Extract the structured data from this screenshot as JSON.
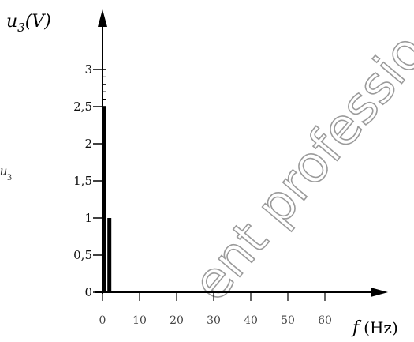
{
  "chart_data": {
    "type": "bar",
    "title": "",
    "ylabel": "u3(V)",
    "ylabel_main": "u",
    "ylabel_sub": "3",
    "ylabel_unit": "(V)",
    "xlabel": "f (Hz)",
    "xlabel_var": "f",
    "xlabel_unit": "(Hz)",
    "x": [
      0,
      1
    ],
    "values": [
      2.5,
      1
    ],
    "xlim": [
      0,
      60
    ],
    "ylim": [
      0,
      3
    ],
    "x_ticks": [
      "0",
      "10",
      "20",
      "30",
      "40",
      "50",
      "60"
    ],
    "y_ticks": [
      "0",
      "0,5",
      "1",
      "1,5",
      "2",
      "2,5",
      "3"
    ],
    "grid": false,
    "legend": "none"
  },
  "annotations": {
    "watermark": "ent professio",
    "side_label_main": "u",
    "side_label_sub": "3"
  }
}
